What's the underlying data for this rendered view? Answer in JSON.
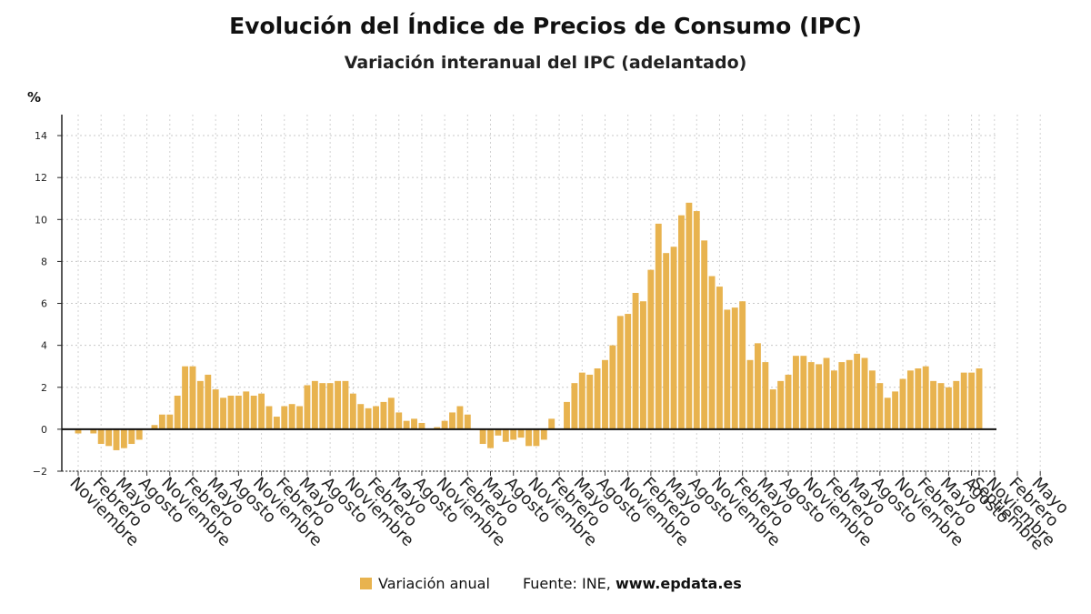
{
  "chart_data": {
    "type": "bar",
    "title": "Evolución del Índice de Precios de Consumo (IPC)",
    "subtitle": "Variación interanual del IPC (adelantado)",
    "ylabel": "%",
    "ylim": [
      -2,
      15
    ],
    "yticks": [
      -2,
      0,
      2,
      4,
      6,
      8,
      10,
      12,
      14
    ],
    "grid": true,
    "bar_color": "#e8b34f",
    "x_tick_labels": [
      "Noviembre",
      "Febrero",
      "Mayo",
      "Agosto",
      "Noviembre",
      "Febrero",
      "Mayo",
      "Agosto",
      "Noviembre",
      "Febrero",
      "Mayo",
      "Agosto",
      "Noviembre",
      "Febrero",
      "Mayo",
      "Agosto",
      "Noviembre",
      "Febrero",
      "Mayo",
      "Agosto",
      "Noviembre",
      "Febrero",
      "Mayo",
      "Agosto",
      "Noviembre",
      "Febrero",
      "Mayo",
      "Agosto",
      "Noviembre",
      "Febrero",
      "Mayo",
      "Agosto",
      "Noviembre",
      "Febrero",
      "Mayo",
      "Agosto",
      "Noviembre",
      "Febrero",
      "Mayo",
      "Agosto",
      "Noviembre",
      "Febrero",
      "Mayo",
      "Septiembre"
    ],
    "series": [
      {
        "name": "Variación anual",
        "values": [
          -0.2,
          0,
          -0.2,
          -0.7,
          -0.8,
          -1.0,
          -0.9,
          -0.7,
          -0.5,
          0,
          0.2,
          0.7,
          0.7,
          1.6,
          3.0,
          3.0,
          2.3,
          2.6,
          1.9,
          1.5,
          1.6,
          1.6,
          1.8,
          1.6,
          1.7,
          1.1,
          0.6,
          1.1,
          1.2,
          1.1,
          2.1,
          2.3,
          2.2,
          2.2,
          2.3,
          2.3,
          1.7,
          1.2,
          1.0,
          1.1,
          1.3,
          1.5,
          0.8,
          0.4,
          0.5,
          0.3,
          0.0,
          0.1,
          0.4,
          0.8,
          1.1,
          0.7,
          0.0,
          -0.7,
          -0.9,
          -0.3,
          -0.6,
          -0.5,
          -0.4,
          -0.8,
          -0.8,
          -0.5,
          0.5,
          0.0,
          1.3,
          2.2,
          2.7,
          2.6,
          2.9,
          3.3,
          4.0,
          5.4,
          5.5,
          6.5,
          6.1,
          7.6,
          9.8,
          8.4,
          8.7,
          10.2,
          10.8,
          10.4,
          9.0,
          7.3,
          6.8,
          5.7,
          5.8,
          6.1,
          3.3,
          4.1,
          3.2,
          1.9,
          2.3,
          2.6,
          3.5,
          3.5,
          3.2,
          3.1,
          3.4,
          2.8,
          3.2,
          3.3,
          3.6,
          3.4,
          2.8,
          2.2,
          1.5,
          1.8,
          2.4,
          2.8,
          2.9,
          3.0,
          2.3,
          2.2,
          2.0,
          2.3,
          2.7,
          2.7,
          2.9
        ]
      }
    ]
  },
  "legend": {
    "label": "Variación anual"
  },
  "source": {
    "prefix": "Fuente: INE, ",
    "site": "www.epdata.es"
  }
}
